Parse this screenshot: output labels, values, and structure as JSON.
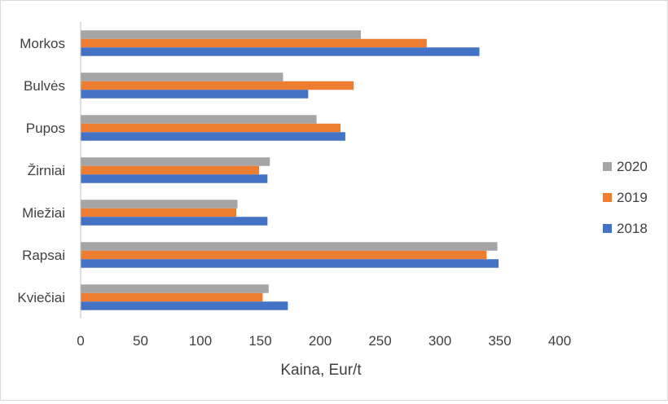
{
  "chart_data": {
    "type": "bar",
    "orientation": "horizontal",
    "title": "",
    "xlabel": "Kaina, Eur/t",
    "ylabel": "",
    "categories": [
      "Morkos",
      "Bulvės",
      "Pupos",
      "Žirniai",
      "Miežiai",
      "Rapsai",
      "Kviečiai"
    ],
    "series": [
      {
        "name": "2020",
        "color": "#a5a5a5",
        "values": [
          234,
          169,
          197,
          158,
          131,
          348,
          157
        ]
      },
      {
        "name": "2019",
        "color": "#ed7d31",
        "values": [
          289,
          228,
          217,
          149,
          130,
          339,
          152
        ]
      },
      {
        "name": "2018",
        "color": "#4472c4",
        "values": [
          333,
          190,
          221,
          156,
          156,
          349,
          173
        ]
      }
    ],
    "xlim": [
      0,
      400
    ],
    "xticks": [
      0,
      50,
      100,
      150,
      200,
      250,
      300,
      350,
      400
    ],
    "grid": false,
    "legend": {
      "position": "right",
      "order": [
        "2020",
        "2019",
        "2018"
      ]
    }
  }
}
